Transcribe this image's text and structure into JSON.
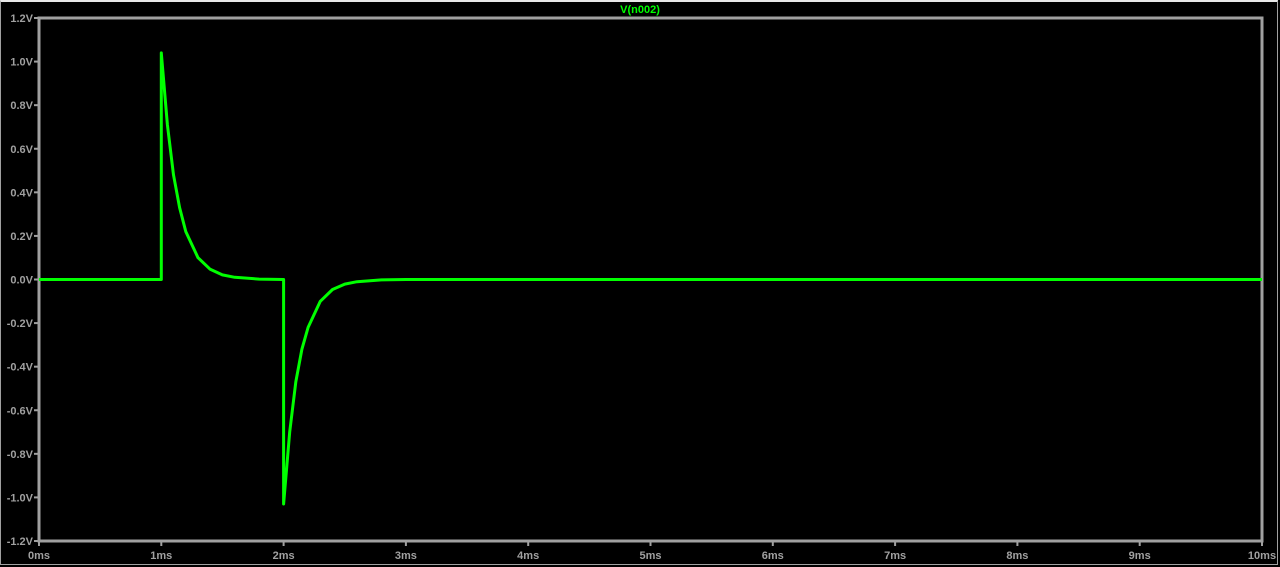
{
  "chart_data": {
    "type": "line",
    "title": "V(n002)",
    "xlabel": "",
    "ylabel": "",
    "xlim": [
      0,
      10
    ],
    "ylim": [
      -1.2,
      1.2
    ],
    "grid": false,
    "x_ticks": [
      "0ms",
      "1ms",
      "2ms",
      "3ms",
      "4ms",
      "5ms",
      "6ms",
      "7ms",
      "8ms",
      "9ms",
      "10ms"
    ],
    "y_ticks": [
      "1.2V",
      "1.0V",
      "0.8V",
      "0.6V",
      "0.4V",
      "0.2V",
      "0.0V",
      "-0.2V",
      "-0.4V",
      "-0.6V",
      "-0.8V",
      "-1.0V",
      "-1.2V"
    ],
    "colors": {
      "trace": "#00ff00",
      "axes": "#a0a0a0",
      "background": "#000000"
    },
    "series": [
      {
        "name": "V(n002)",
        "x": [
          0,
          1.0,
          1.0,
          1.05,
          1.1,
          1.15,
          1.2,
          1.3,
          1.4,
          1.5,
          1.6,
          1.8,
          2.0,
          2.0,
          2.05,
          2.1,
          2.15,
          2.2,
          2.3,
          2.4,
          2.5,
          2.6,
          2.8,
          3.0,
          10
        ],
        "y": [
          0,
          0,
          1.04,
          0.71,
          0.48,
          0.33,
          0.22,
          0.1,
          0.047,
          0.021,
          0.01,
          0.002,
          0,
          -1.03,
          -0.7,
          -0.47,
          -0.32,
          -0.22,
          -0.1,
          -0.046,
          -0.021,
          -0.01,
          -0.002,
          0,
          0
        ]
      }
    ]
  }
}
